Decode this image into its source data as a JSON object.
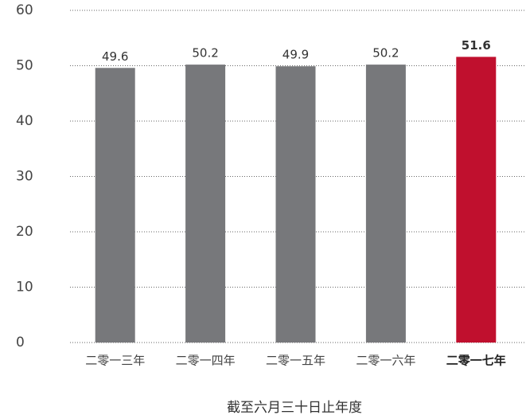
{
  "chart_data": {
    "type": "bar",
    "x_label": "截至六月三十日止年度",
    "categories": [
      "二零一三年",
      "二零一四年",
      "二零一五年",
      "二零一六年",
      "二零一七年"
    ],
    "values": [
      49.6,
      50.2,
      49.9,
      50.2,
      51.6
    ],
    "colors": [
      "#77787b",
      "#77787b",
      "#77787b",
      "#77787b",
      "#c0102e"
    ],
    "highlight": 4,
    "ylim": [
      0,
      60
    ],
    "yticks": [
      0,
      10,
      20,
      30,
      40,
      50,
      60
    ],
    "grid": true
  }
}
